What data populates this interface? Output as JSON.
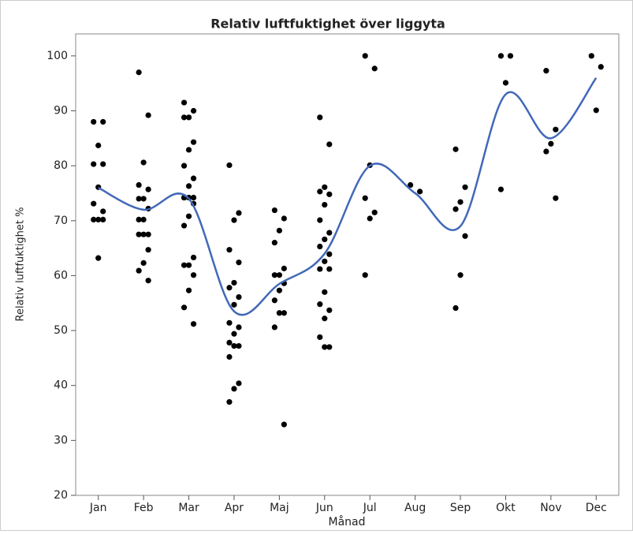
{
  "chart_data": {
    "type": "scatter",
    "title": "Relativ luftfuktighet över liggyta",
    "x_label": "Månad",
    "y_label": "Relativ luftfuktighet %",
    "categories": [
      "Jan",
      "Feb",
      "Mar",
      "Apr",
      "Maj",
      "Jun",
      "Jul",
      "Aug",
      "Sep",
      "Okt",
      "Nov",
      "Dec"
    ],
    "point_color": "#000000",
    "x": [
      "Jan",
      "Jan",
      "Jan",
      "Jan",
      "Jan",
      "Jan",
      "Jan",
      "Jan",
      "Jan",
      "Jan",
      "Jan",
      "Jan",
      "Feb",
      "Feb",
      "Feb",
      "Feb",
      "Feb",
      "Feb",
      "Feb",
      "Feb",
      "Feb",
      "Feb",
      "Feb",
      "Feb",
      "Feb",
      "Feb",
      "Feb",
      "Feb",
      "Feb",
      "Mar",
      "Mar",
      "Mar",
      "Mar",
      "Mar",
      "Mar",
      "Mar",
      "Mar",
      "Mar",
      "Mar",
      "Mar",
      "Mar",
      "Mar",
      "Mar",
      "Mar",
      "Mar",
      "Mar",
      "Mar",
      "Mar",
      "Mar",
      "Mar",
      "Mar",
      "Mar",
      "Apr",
      "Apr",
      "Apr",
      "Apr",
      "Apr",
      "Apr",
      "Apr",
      "Apr",
      "Apr",
      "Apr",
      "Apr",
      "Apr",
      "Apr",
      "Apr",
      "Apr",
      "Apr",
      "Apr",
      "Apr",
      "Apr",
      "Maj",
      "Maj",
      "Maj",
      "Maj",
      "Maj",
      "Maj",
      "Maj",
      "Maj",
      "Maj",
      "Maj",
      "Maj",
      "Maj",
      "Maj",
      "Maj",
      "Jun",
      "Jun",
      "Jun",
      "Jun",
      "Jun",
      "Jun",
      "Jun",
      "Jun",
      "Jun",
      "Jun",
      "Jun",
      "Jun",
      "Jun",
      "Jun",
      "Jun",
      "Jun",
      "Jun",
      "Jun",
      "Jun",
      "Jun",
      "Jun",
      "Jul",
      "Jul",
      "Jul",
      "Jul",
      "Jul",
      "Jul",
      "Jul",
      "Aug",
      "Aug",
      "Sep",
      "Sep",
      "Sep",
      "Sep",
      "Sep",
      "Sep",
      "Sep",
      "Okt",
      "Okt",
      "Okt",
      "Okt",
      "Nov",
      "Nov",
      "Nov",
      "Nov",
      "Nov",
      "Dec",
      "Dec",
      "Dec"
    ],
    "y": [
      88,
      88,
      83.7,
      80.3,
      80.3,
      76.1,
      73.1,
      71.7,
      70.2,
      70.2,
      70.2,
      63.2,
      97,
      89.2,
      80.6,
      76.5,
      75.7,
      74,
      74,
      72.2,
      70.2,
      70.2,
      67.5,
      67.5,
      67.5,
      64.7,
      62.3,
      60.9,
      59.1,
      91.5,
      90,
      88.8,
      88.8,
      84.3,
      82.9,
      80,
      77.7,
      76.3,
      74.2,
      74.2,
      74.2,
      74.2,
      73.1,
      70.8,
      69.1,
      63.3,
      61.9,
      61.9,
      60.1,
      57.3,
      54.2,
      51.2,
      80.1,
      71.4,
      70.1,
      64.7,
      62.4,
      58.7,
      57.8,
      56.1,
      54.7,
      51.4,
      50.6,
      49.4,
      47.8,
      47.2,
      47.2,
      45.2,
      40.4,
      39.4,
      37,
      71.9,
      70.4,
      68.2,
      66,
      61.3,
      60.1,
      60.1,
      58.6,
      57.3,
      55.5,
      53.2,
      53.2,
      50.6,
      32.9,
      88.8,
      83.9,
      76.1,
      75.3,
      74.8,
      72.9,
      70.1,
      67.8,
      66.6,
      65.3,
      63.9,
      62.6,
      61.2,
      61.2,
      57,
      54.8,
      53.7,
      52.2,
      48.8,
      47,
      47,
      100,
      97.7,
      80.1,
      74.1,
      71.5,
      70.4,
      60.1,
      76.5,
      75.3,
      83,
      76.1,
      73.4,
      72.1,
      67.2,
      60.1,
      54.1,
      100,
      100,
      95.1,
      75.7,
      97.3,
      86.6,
      84,
      82.6,
      74.1,
      100,
      98,
      90.1
    ],
    "smooth": {
      "color": "#4169b8",
      "values": [
        76,
        72,
        74,
        53.5,
        58.5,
        64,
        80,
        75,
        69,
        93,
        85,
        96
      ]
    },
    "ylim": [
      20,
      104
    ],
    "yticks": [
      20,
      30,
      40,
      50,
      60,
      70,
      80,
      90,
      100
    ]
  }
}
